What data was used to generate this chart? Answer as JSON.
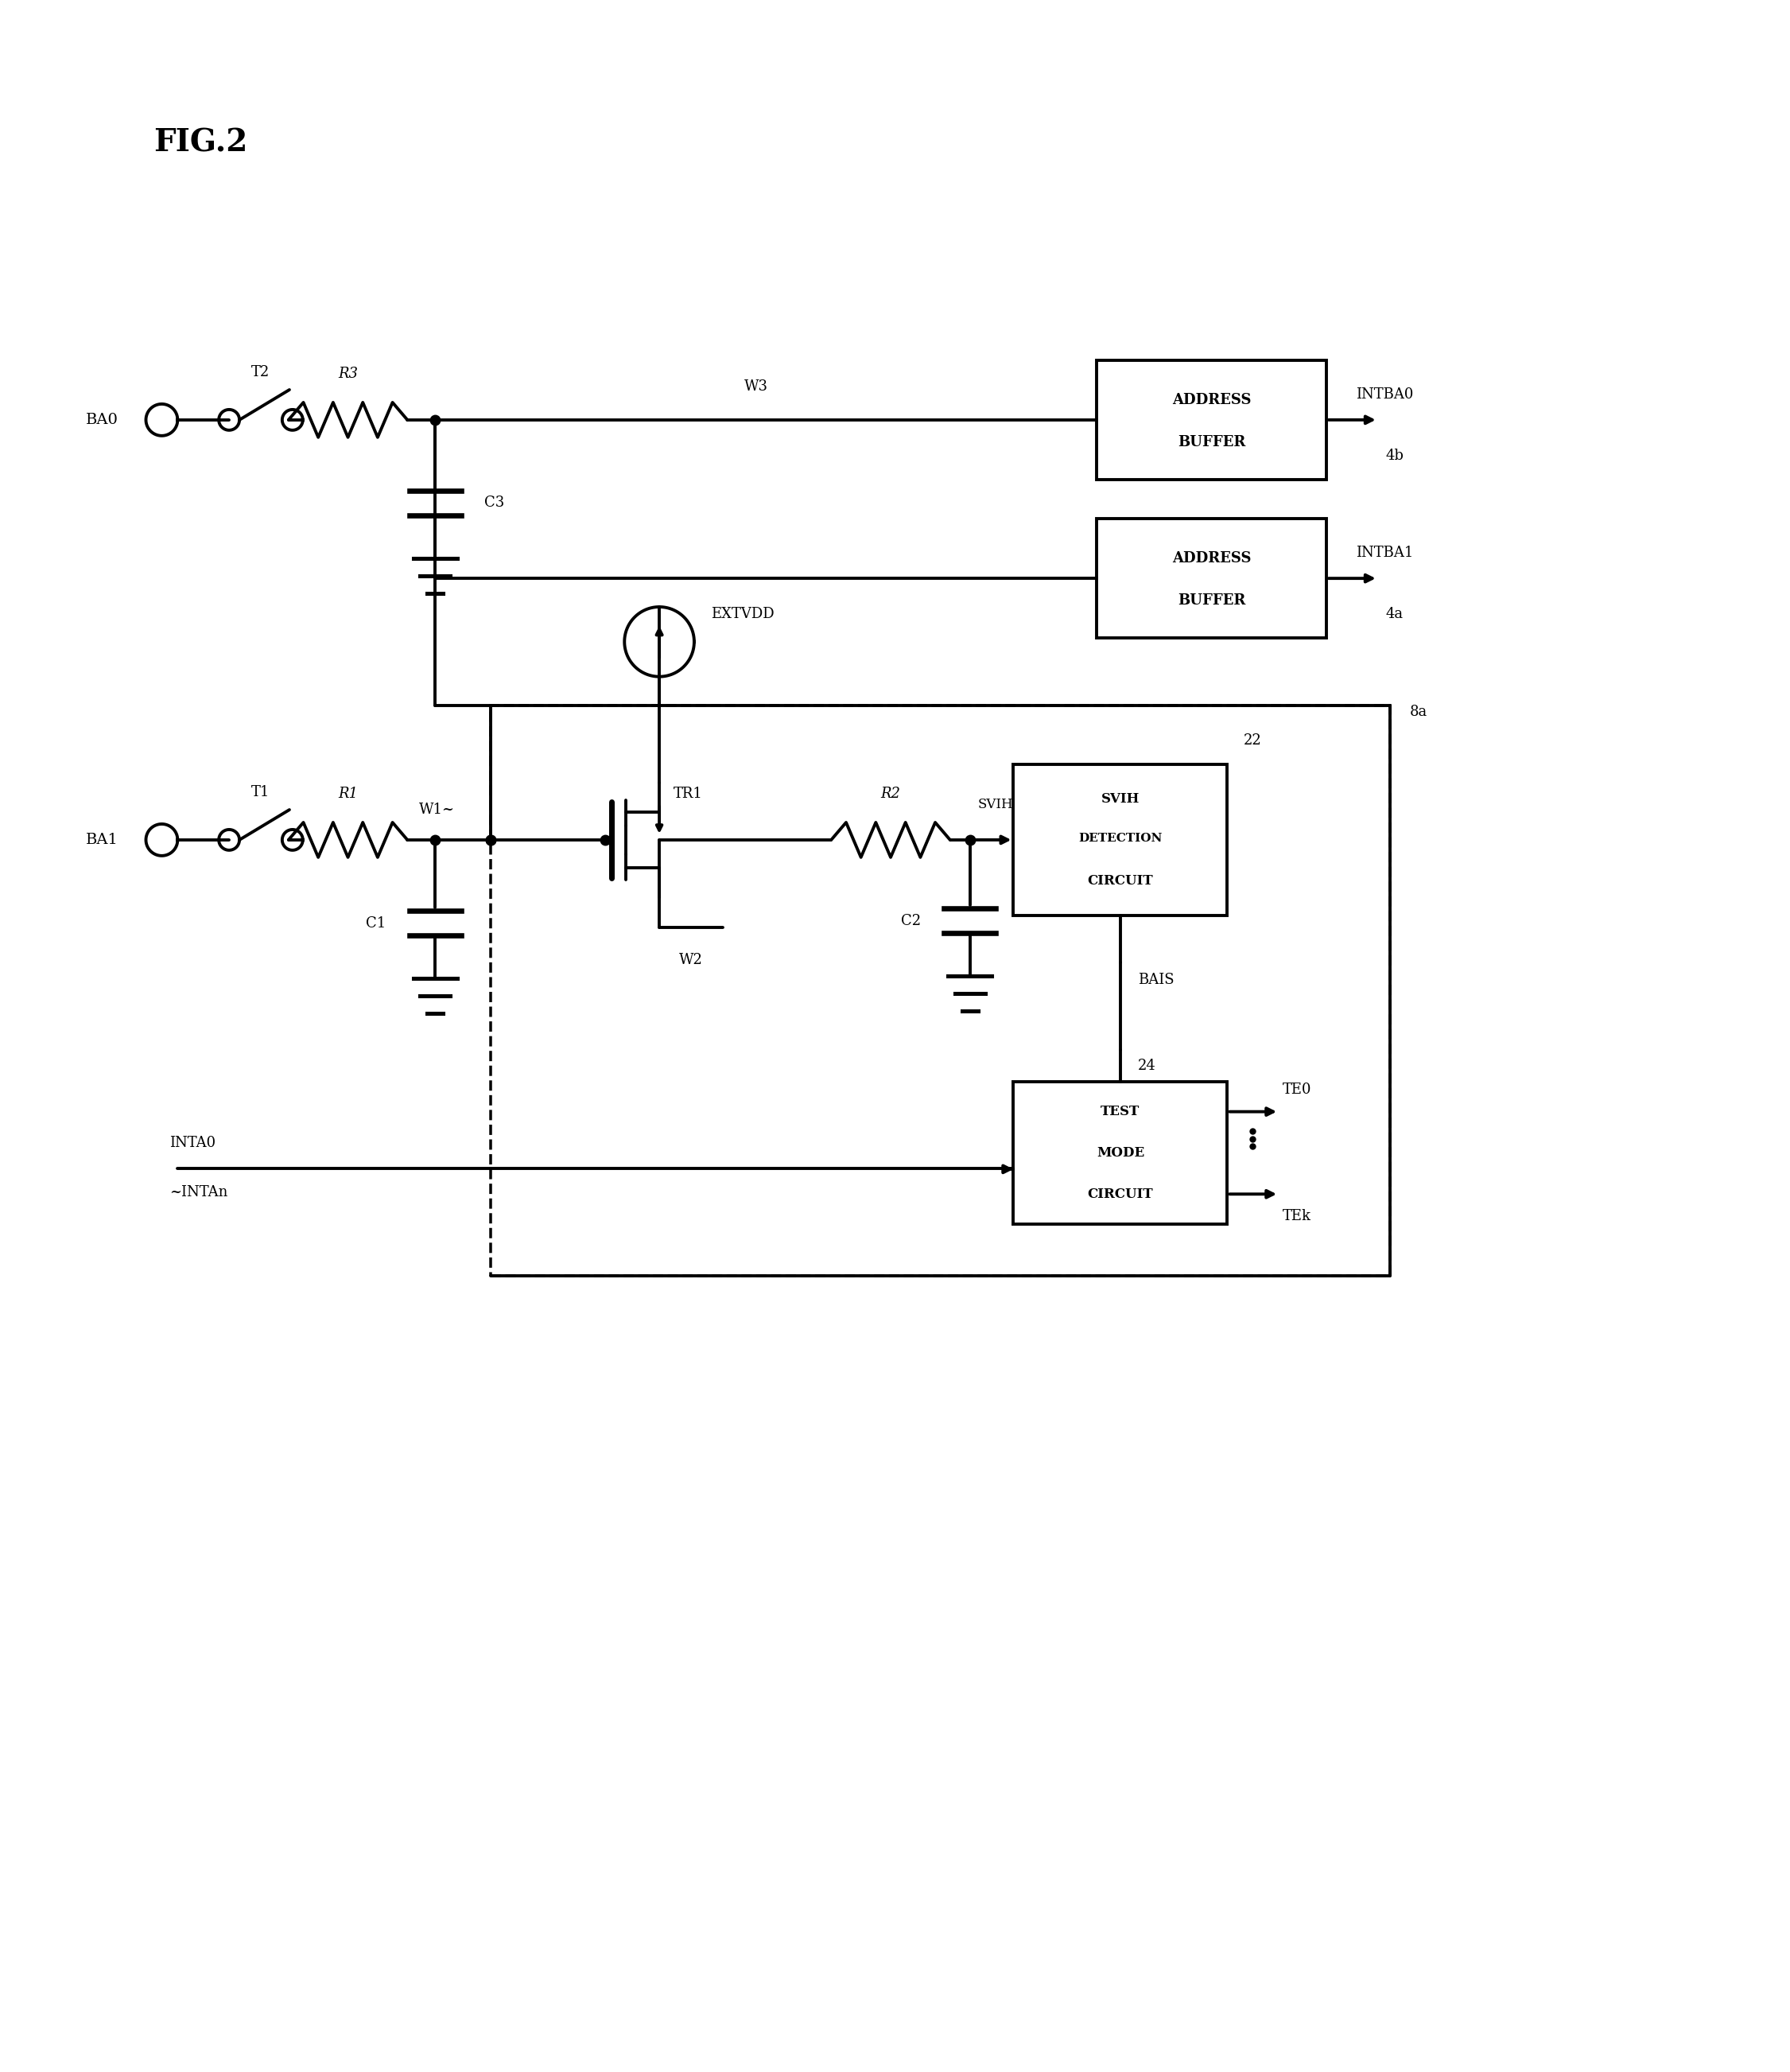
{
  "bg_color": "#ffffff",
  "lc": "#000000",
  "lw": 2.8,
  "fig_width": 22.51,
  "fig_height": 26.05,
  "title": "FIG.2",
  "labels": {
    "BA0": "BA0",
    "BA1": "BA1",
    "T2": "T2",
    "T1": "T1",
    "R3": "R3",
    "R1": "R1",
    "R2": "R2",
    "C3": "C3",
    "C1": "C1",
    "C2": "C2",
    "W3": "W3",
    "W2": "W2",
    "W1": "W1~",
    "TR1": "TR1",
    "EXTVDD": "EXTVDD",
    "SVIH": "SVIH",
    "INTBA0": "INTBA0",
    "INTBA1": "INTBA1",
    "4b": "4b",
    "4a": "4a",
    "8a": "8a",
    "22": "22",
    "24": "24",
    "BAIS": "BAIS",
    "TEO": "TE0",
    "TEk": "TEk",
    "INTA0": "INTA0",
    "INTAn": "~INTAn",
    "addr_buf_line1": "ADDRESS",
    "addr_buf_line2": "BUFFER",
    "svih_l1": "SVIH",
    "svih_l2": "DETECTION",
    "svih_l3": "CIRCUIT",
    "test_l1": "TEST",
    "test_l2": "MODE",
    "test_l3": "CIRCUIT"
  }
}
